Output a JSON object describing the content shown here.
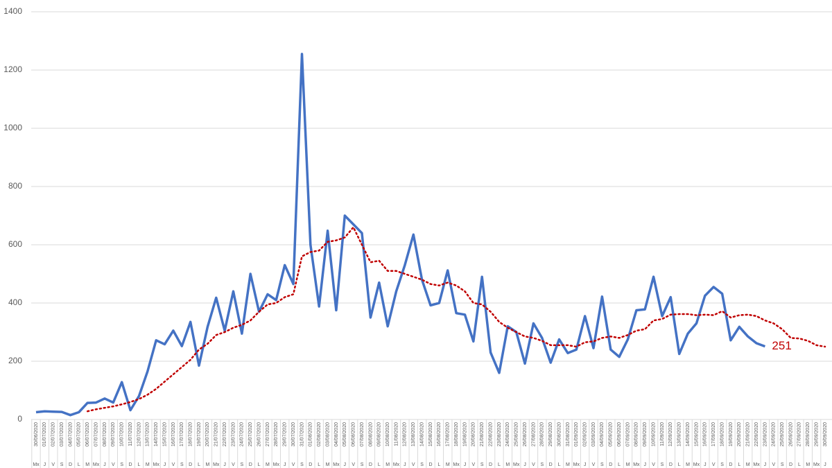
{
  "chart_data": {
    "type": "line",
    "categories": [
      "30/06/2020",
      "01/07/2020",
      "02/07/2020",
      "03/07/2020",
      "04/07/2020",
      "05/07/2020",
      "06/07/2020",
      "07/07/2020",
      "08/07/2020",
      "09/07/2020",
      "10/07/2020",
      "11/07/2020",
      "12/07/2020",
      "13/07/2020",
      "14/07/2020",
      "15/07/2020",
      "16/07/2020",
      "17/07/2020",
      "18/07/2020",
      "19/07/2020",
      "20/07/2020",
      "21/07/2020",
      "22/07/2020",
      "23/07/2020",
      "24/07/2020",
      "25/07/2020",
      "26/07/2020",
      "27/07/2020",
      "28/07/2020",
      "29/07/2020",
      "30/07/2020",
      "31/07/2020",
      "01/08/2020",
      "02/08/2020",
      "03/08/2020",
      "04/08/2020",
      "05/08/2020",
      "06/08/2020",
      "07/08/2020",
      "08/08/2020",
      "09/08/2020",
      "10/08/2020",
      "11/08/2020",
      "12/08/2020",
      "13/08/2020",
      "14/08/2020",
      "15/08/2020",
      "16/08/2020",
      "17/08/2020",
      "18/08/2020",
      "19/08/2020",
      "20/08/2020",
      "21/08/2020",
      "22/08/2020",
      "23/08/2020",
      "24/08/2020",
      "25/08/2020",
      "26/08/2020",
      "27/08/2020",
      "28/08/2020",
      "29/08/2020",
      "30/08/2020",
      "31/08/2020",
      "01/09/2020",
      "02/09/2020",
      "03/09/2020",
      "04/09/2020",
      "05/09/2020",
      "06/09/2020",
      "07/09/2020",
      "08/09/2020",
      "09/09/2020",
      "10/09/2020",
      "11/09/2020",
      "12/09/2020",
      "13/09/2020",
      "14/09/2020",
      "15/09/2020",
      "16/09/2020",
      "17/09/2020",
      "18/09/2020",
      "19/09/2020",
      "20/09/2020",
      "21/09/2020",
      "22/09/2020",
      "23/09/2020",
      "24/09/2020",
      "25/09/2020",
      "26/09/2020",
      "27/09/2020",
      "28/09/2020",
      "29/09/2020",
      "30/09/2020"
    ],
    "weekdays": [
      "Mx",
      "J",
      "V",
      "S",
      "D",
      "L",
      "M",
      "Mx",
      "J",
      "V",
      "S",
      "D",
      "L",
      "M",
      "Mx",
      "J",
      "V",
      "S",
      "D",
      "L",
      "M",
      "Mx",
      "J",
      "V",
      "S",
      "D",
      "L",
      "M",
      "Mx",
      "J",
      "V",
      "S",
      "D",
      "L",
      "M",
      "Mx",
      "J",
      "V",
      "S",
      "D",
      "L",
      "M",
      "Mx",
      "J",
      "V",
      "S",
      "D",
      "L",
      "M",
      "Mx",
      "J",
      "V",
      "S",
      "D",
      "L",
      "M",
      "Mx",
      "J",
      "V",
      "S",
      "D",
      "L",
      "M",
      "Mx",
      "J",
      "V",
      "S",
      "D",
      "L",
      "M",
      "Mx",
      "J",
      "V",
      "S",
      "D",
      "L",
      "M",
      "Mx",
      "J",
      "V",
      "S",
      "D",
      "L",
      "M",
      "Mx",
      "J",
      "V",
      "S",
      "D",
      "L",
      "M",
      "Mx",
      "J"
    ],
    "series": [
      {
        "color": "#4472c4",
        "style": "solid",
        "values": [
          25,
          28,
          27,
          26,
          15,
          25,
          57,
          58,
          72,
          58,
          128,
          32,
          80,
          165,
          272,
          258,
          305,
          252,
          335,
          185,
          318,
          418,
          305,
          440,
          295,
          500,
          370,
          430,
          410,
          530,
          465,
          1255,
          600,
          388,
          648,
          375,
          700,
          670,
          640,
          350,
          470,
          320,
          440,
          530,
          635,
          480,
          392,
          400,
          512,
          365,
          360,
          268,
          490,
          230,
          160,
          320,
          300,
          192,
          330,
          280,
          195,
          275,
          228,
          240,
          355,
          245,
          422,
          240,
          215,
          275,
          375,
          378,
          490,
          355,
          420,
          225,
          295,
          330,
          425,
          455,
          432,
          272,
          318,
          285,
          262,
          251,
          null,
          null,
          null,
          null,
          null,
          null,
          null
        ]
      },
      {
        "color": "#c00000",
        "style": "dotted",
        "values": [
          null,
          null,
          null,
          null,
          null,
          null,
          28,
          35,
          40,
          45,
          52,
          60,
          70,
          85,
          105,
          130,
          155,
          180,
          205,
          240,
          260,
          290,
          300,
          315,
          325,
          340,
          370,
          395,
          400,
          420,
          430,
          560,
          575,
          580,
          610,
          615,
          625,
          660,
          600,
          540,
          545,
          510,
          510,
          500,
          490,
          480,
          465,
          460,
          470,
          460,
          440,
          400,
          395,
          370,
          335,
          315,
          300,
          285,
          280,
          270,
          255,
          255,
          255,
          250,
          265,
          268,
          280,
          285,
          280,
          290,
          305,
          310,
          340,
          345,
          360,
          362,
          362,
          358,
          360,
          358,
          372,
          350,
          358,
          360,
          355,
          340,
          330,
          310,
          280,
          278,
          270,
          255,
          250
        ]
      }
    ],
    "annotation": "251",
    "ylim": [
      0,
      1400
    ],
    "yticks": [
      0,
      200,
      400,
      600,
      800,
      1000,
      1200,
      1400
    ],
    "grid": true
  }
}
